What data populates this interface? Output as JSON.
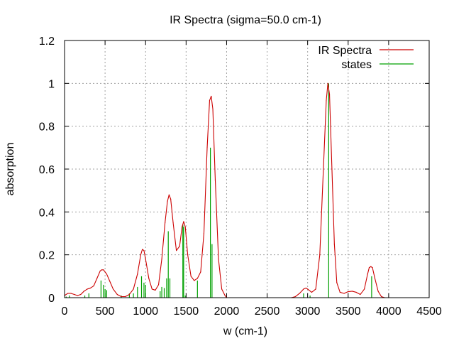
{
  "chart_data": {
    "type": "line",
    "title": "IR Spectra (sigma=50.0 cm-1)",
    "xlabel": "w (cm-1)",
    "ylabel": "absorption",
    "xlim": [
      0,
      4500
    ],
    "ylim": [
      0,
      1.2
    ],
    "x_ticks": [
      "0",
      "500",
      "1000",
      "1500",
      "2000",
      "2500",
      "3000",
      "3500",
      "4000",
      "4500"
    ],
    "y_ticks": [
      "0",
      "0.2",
      "0.4",
      "0.6",
      "0.8",
      "1",
      "1.2"
    ],
    "grid": true,
    "legend_position": "top-right",
    "series": [
      {
        "name": "IR Spectra",
        "color": "#cc0000",
        "x": [
          0,
          40,
          80,
          120,
          160,
          200,
          240,
          280,
          320,
          360,
          400,
          440,
          460,
          480,
          520,
          560,
          600,
          650,
          700,
          750,
          800,
          850,
          900,
          940,
          960,
          980,
          1000,
          1040,
          1080,
          1120,
          1160,
          1200,
          1240,
          1270,
          1290,
          1310,
          1340,
          1380,
          1420,
          1450,
          1470,
          1490,
          1520,
          1560,
          1600,
          1640,
          1680,
          1720,
          1760,
          1790,
          1810,
          1830,
          1860,
          1900,
          1940,
          1980,
          2000,
          2800,
          2850,
          2900,
          2950,
          2980,
          3000,
          3050,
          3100,
          3150,
          3200,
          3230,
          3250,
          3270,
          3300,
          3330,
          3360,
          3400,
          3450,
          3500,
          3550,
          3600,
          3650,
          3700,
          3740,
          3760,
          3780,
          3800,
          3830,
          3870,
          3910,
          3950,
          4000
        ],
        "y": [
          0.01,
          0.02,
          0.02,
          0.015,
          0.01,
          0.015,
          0.03,
          0.04,
          0.045,
          0.055,
          0.09,
          0.125,
          0.13,
          0.13,
          0.11,
          0.075,
          0.04,
          0.015,
          0.005,
          0.005,
          0.015,
          0.04,
          0.11,
          0.2,
          0.225,
          0.22,
          0.18,
          0.09,
          0.04,
          0.035,
          0.06,
          0.18,
          0.35,
          0.45,
          0.48,
          0.46,
          0.35,
          0.22,
          0.24,
          0.33,
          0.355,
          0.33,
          0.2,
          0.1,
          0.08,
          0.09,
          0.12,
          0.3,
          0.7,
          0.92,
          0.94,
          0.88,
          0.55,
          0.18,
          0.04,
          0.01,
          0.0,
          0.0,
          0.005,
          0.02,
          0.04,
          0.045,
          0.04,
          0.025,
          0.04,
          0.2,
          0.65,
          0.92,
          1.0,
          0.95,
          0.6,
          0.25,
          0.07,
          0.025,
          0.02,
          0.028,
          0.03,
          0.025,
          0.015,
          0.04,
          0.11,
          0.14,
          0.145,
          0.14,
          0.09,
          0.03,
          0.005,
          0.0,
          0.0
        ]
      },
      {
        "name": "states",
        "color": "#00a000",
        "x": [
          20,
          60,
          250,
          300,
          450,
          480,
          500,
          520,
          700,
          800,
          850,
          900,
          950,
          980,
          1000,
          1180,
          1200,
          1230,
          1260,
          1280,
          1300,
          1460,
          1470,
          1490,
          1640,
          1800,
          1820,
          2950,
          3030,
          3260,
          3790
        ],
        "y": [
          0.005,
          0.01,
          0.01,
          0.02,
          0.08,
          0.06,
          0.04,
          0.035,
          0.01,
          0.02,
          0.02,
          0.05,
          0.1,
          0.07,
          0.06,
          0.03,
          0.05,
          0.045,
          0.09,
          0.31,
          0.09,
          0.34,
          0.33,
          0.01,
          0.08,
          0.7,
          0.25,
          0.02,
          0.01,
          1.0,
          0.1
        ]
      }
    ]
  }
}
